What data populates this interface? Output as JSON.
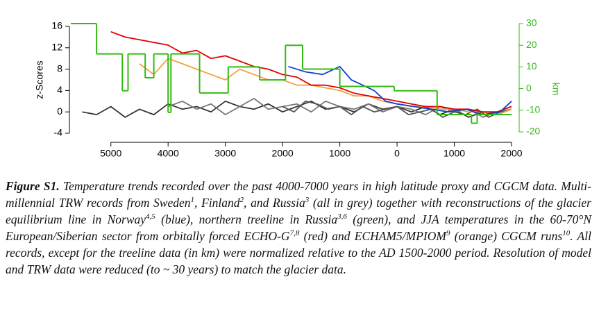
{
  "chart_data": {
    "type": "line",
    "ylabel": "z-Scores",
    "y2label": "km",
    "xlim": [
      -5700,
      2000
    ],
    "ylim": [
      -4,
      16
    ],
    "y2lim": [
      -20,
      30
    ],
    "xticks": [
      {
        "value": -5000,
        "label": "5000"
      },
      {
        "value": -4000,
        "label": "4000"
      },
      {
        "value": -3000,
        "label": "3000"
      },
      {
        "value": -2000,
        "label": "2000"
      },
      {
        "value": -1000,
        "label": "1000"
      },
      0,
      1000,
      2000
    ],
    "yticks": [
      -4,
      0,
      4,
      8,
      12,
      16
    ],
    "y2ticks": [
      -20,
      -10,
      0,
      10,
      20,
      30
    ],
    "y2color": "#33bb11",
    "series": [
      {
        "color": "#333333",
        "x": [
          -5500,
          -5250,
          -5000,
          -4750,
          -4500,
          -4250,
          -4000,
          -3750,
          -3500,
          -3250,
          -3000,
          -2750,
          -2500,
          -2250,
          -2000,
          -1750,
          -1500,
          -1250,
          -1000,
          -750,
          -500,
          -250,
          0,
          250,
          500,
          750,
          1000,
          1250,
          1500,
          1750,
          2000
        ],
        "values": [
          0,
          -0.5,
          1,
          -1,
          0.5,
          -0.5,
          1.5,
          0.5,
          1,
          0,
          2,
          1,
          0.5,
          1.5,
          0,
          1,
          2,
          0.5,
          1,
          0,
          1.5,
          0.5,
          1,
          0,
          1,
          -0.5,
          0.5,
          -1,
          0,
          -0.5,
          0.5
        ]
      },
      {
        "color": "#777777",
        "x": [
          -4000,
          -3750,
          -3500,
          -3250,
          -3000,
          -2750,
          -2500,
          -2250,
          -2000,
          -1750,
          -1500,
          -1250,
          -1000,
          -750,
          -500,
          -250,
          0,
          250,
          500,
          750,
          1000,
          1250,
          1500,
          1750,
          2000
        ],
        "values": [
          1,
          2,
          0.5,
          1.5,
          -0.5,
          1,
          2.5,
          0.5,
          1,
          1.5,
          0,
          2,
          1,
          0.5,
          1.5,
          0,
          1,
          0.5,
          -0.5,
          1,
          0,
          0.5,
          -1,
          0,
          1
        ]
      },
      {
        "color": "#555555",
        "x": [
          -2000,
          -1800,
          -1600,
          -1400,
          -1200,
          -1000,
          -800,
          -600,
          -400,
          -200,
          0,
          200,
          400,
          600,
          800,
          1000,
          1200,
          1400,
          1600,
          1800,
          2000
        ],
        "values": [
          1,
          0,
          2,
          1.5,
          0.5,
          1,
          -0.5,
          1,
          0,
          0.5,
          1,
          -0.5,
          0,
          0.5,
          -1,
          0,
          -0.5,
          0.5,
          -1,
          0,
          0.5
        ]
      },
      {
        "color": "#f5a040",
        "x": [
          -4500,
          -4250,
          -4000,
          -3750,
          -3500,
          -3250,
          -3000,
          -2750,
          -2500,
          -2250,
          -2000,
          -1750,
          -1500,
          -1250,
          -1000,
          -750,
          -500,
          -250,
          0,
          250,
          500,
          750,
          1000,
          1250,
          1500,
          1750,
          2000
        ],
        "values": [
          9,
          7,
          10,
          9,
          8,
          7,
          6,
          8,
          7,
          6,
          6,
          5,
          5,
          4.5,
          4,
          3,
          3,
          2,
          1.5,
          1,
          1,
          0.5,
          0.5,
          0,
          0,
          -0.5,
          0.5
        ]
      },
      {
        "color": "#e00000",
        "x": [
          -5000,
          -4750,
          -4500,
          -4250,
          -4000,
          -3750,
          -3500,
          -3250,
          -3000,
          -2750,
          -2500,
          -2250,
          -2000,
          -1750,
          -1500,
          -1250,
          -1000,
          -750,
          -500,
          -250,
          0,
          250,
          500,
          750,
          1000,
          1250,
          1500,
          1750,
          2000
        ],
        "values": [
          15,
          14,
          13.5,
          13,
          12.5,
          11,
          11.5,
          10,
          10.5,
          9.5,
          8.5,
          8,
          7,
          6.5,
          5,
          5,
          4.5,
          3.5,
          3,
          2.5,
          2,
          1.5,
          1,
          1,
          0.5,
          0.5,
          0,
          0,
          1
        ]
      },
      {
        "color": "#1040d0",
        "x": [
          -1900,
          -1600,
          -1300,
          -1000,
          -800,
          -600,
          -400,
          -200,
          0,
          300,
          600,
          900,
          1200,
          1500,
          1800,
          2000
        ],
        "values": [
          8.5,
          7.5,
          7,
          8.5,
          6,
          5,
          4,
          2,
          1.5,
          1,
          0.5,
          0,
          0.5,
          -0.5,
          0,
          2
        ]
      },
      {
        "color": "#33bb11",
        "axis": "y2",
        "step": true,
        "bins": [
          -5700,
          -5250,
          -4800,
          -4700,
          -4400,
          -4250,
          -4000,
          -3950,
          -3450,
          -2950,
          -2400,
          -1950,
          -1650,
          -1000,
          -50,
          700,
          1300,
          1400,
          2000
        ],
        "values": [
          30,
          16,
          -1,
          16,
          5,
          16,
          -11,
          16,
          -2,
          10,
          4,
          20,
          9,
          1,
          -1,
          -12,
          -16,
          -12
        ]
      }
    ]
  },
  "caption": {
    "label": "Figure S1.",
    "parts": [
      {
        "text": " Temperature trends recorded over the past 4000-7000 years in high latitude proxy and CGCM data. Multi-millennial TRW records from Sweden"
      },
      {
        "sup": "1"
      },
      {
        "text": ", Finland"
      },
      {
        "sup": "2"
      },
      {
        "text": ", and Russia"
      },
      {
        "sup": "3"
      },
      {
        "text": " (all in grey) together with reconstructions of the glacier equilibrium line in Norway"
      },
      {
        "sup": "4,5"
      },
      {
        "text": " (blue), northern treeline in Russia"
      },
      {
        "sup": "3,6"
      },
      {
        "text": " (green), and JJA temperatures in the 60-70°N European/Siberian sector from orbitally forced ECHO-G"
      },
      {
        "sup": "7,8"
      },
      {
        "text": " (red) and ECHAM5/MPIOM"
      },
      {
        "sup": "9"
      },
      {
        "text": " (orange) CGCM runs"
      },
      {
        "sup": "10"
      },
      {
        "text": ". All records, except for the treeline data (in km) were normalized relative to the AD 1500-2000 period. Resolution of model and TRW data were reduced (to ~ 30 years) to match the glacier data."
      }
    ]
  }
}
